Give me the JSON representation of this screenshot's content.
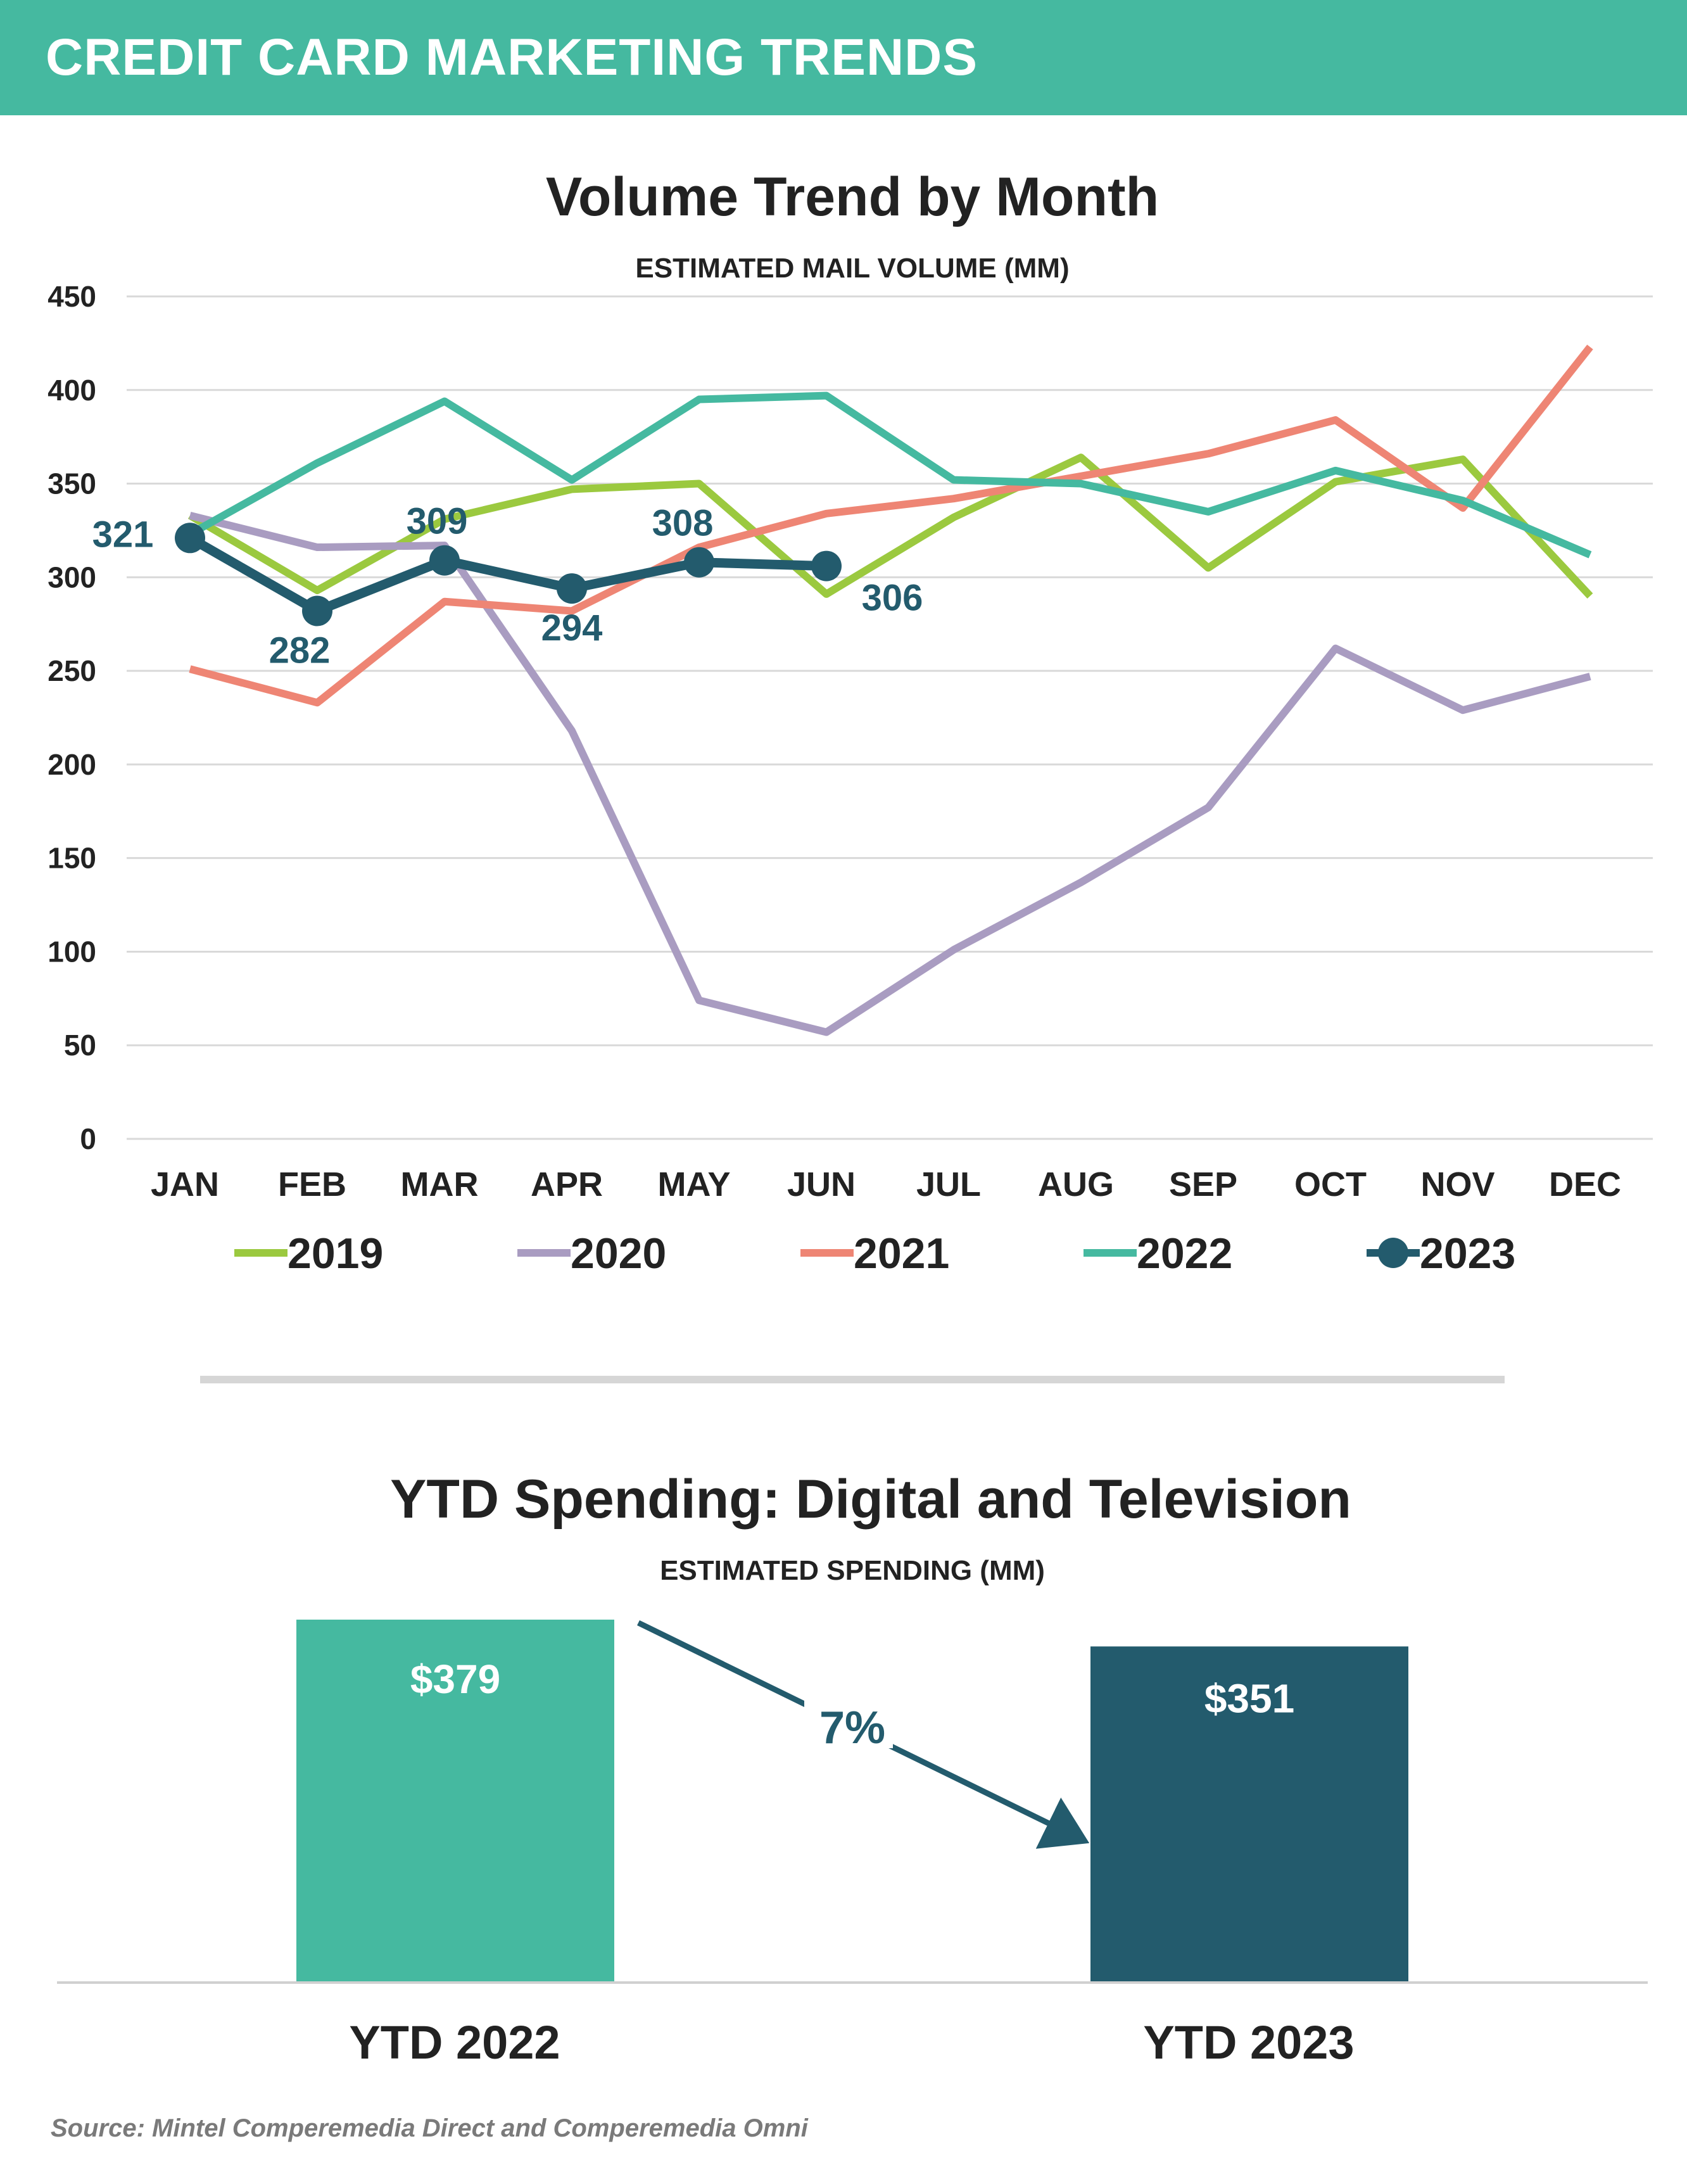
{
  "header": {
    "title": "CREDIT CARD MARKETING TRENDS"
  },
  "source": "Source: Mintel Comperemedia Direct and Comperemedia Omni",
  "chart_data": [
    {
      "type": "line",
      "title": "Volume Trend by Month",
      "subtitle": "ESTIMATED MAIL VOLUME (MM)",
      "categories": [
        "JAN",
        "FEB",
        "MAR",
        "APR",
        "MAY",
        "JUN",
        "JUL",
        "AUG",
        "SEP",
        "OCT",
        "NOV",
        "DEC"
      ],
      "y_ticks": [
        0,
        50,
        100,
        150,
        200,
        250,
        300,
        350,
        400,
        450
      ],
      "ylim": [
        0,
        450
      ],
      "grid": true,
      "legend": "bottom",
      "series": [
        {
          "name": "2019",
          "color": "#9bc93f",
          "markers": false,
          "values": [
            333,
            293,
            331,
            347,
            350,
            291,
            332,
            364,
            305,
            351,
            363,
            290
          ]
        },
        {
          "name": "2020",
          "color": "#a99cc1",
          "markers": false,
          "values": [
            333,
            316,
            317,
            218,
            74,
            57,
            101,
            137,
            177,
            262,
            229,
            247
          ]
        },
        {
          "name": "2021",
          "color": "#ee8574",
          "markers": false,
          "values": [
            251,
            233,
            287,
            282,
            316,
            334,
            342,
            354,
            366,
            384,
            337,
            423
          ]
        },
        {
          "name": "2022",
          "color": "#45b9a0",
          "markers": false,
          "values": [
            323,
            361,
            394,
            352,
            395,
            397,
            352,
            350,
            335,
            357,
            341,
            312
          ]
        },
        {
          "name": "2023",
          "color": "#235b6d",
          "markers": true,
          "values": [
            321,
            282,
            309,
            294,
            308,
            306,
            null,
            null,
            null,
            null,
            null,
            null
          ],
          "data_labels": [
            "321",
            "282",
            "309",
            "294",
            "308",
            "306"
          ]
        }
      ]
    },
    {
      "type": "bar",
      "title": "YTD Spending: Digital and Television",
      "subtitle": "ESTIMATED SPENDING (MM)",
      "categories": [
        "YTD 2022",
        "YTD 2023"
      ],
      "values": [
        379,
        351
      ],
      "data_labels": [
        "$379",
        "$351"
      ],
      "colors": [
        "#45b9a0",
        "#235b6d"
      ],
      "annotation": "7%"
    }
  ]
}
